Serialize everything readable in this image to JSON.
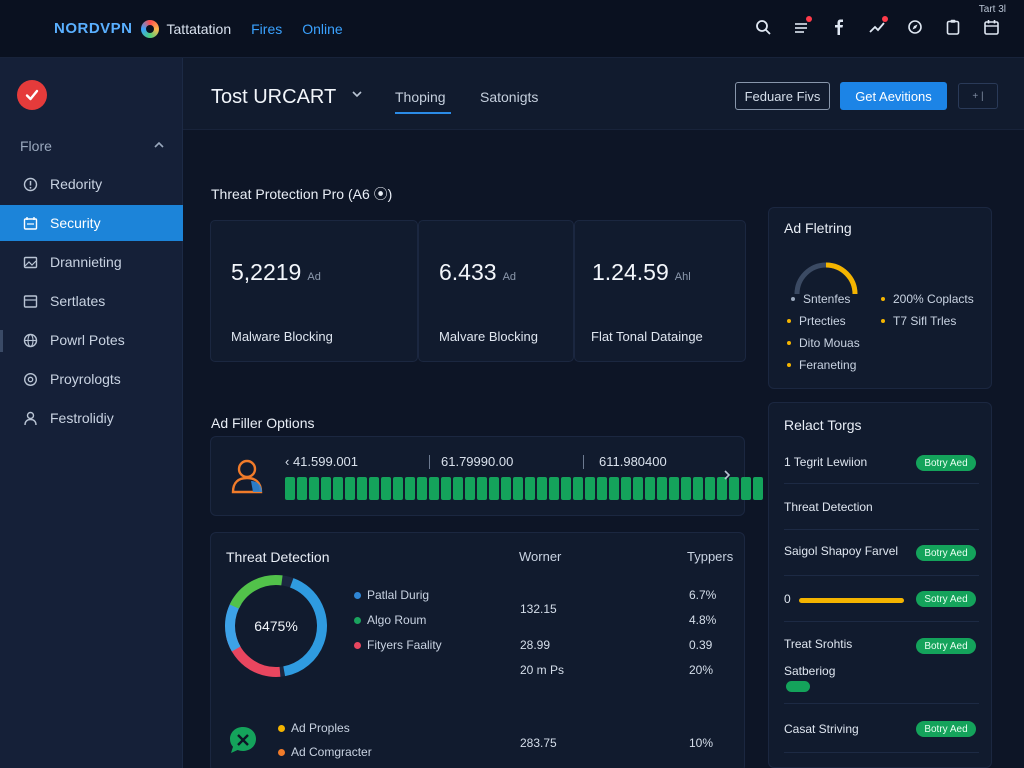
{
  "topbar": {
    "brand": "NORDVPN",
    "nav": [
      "Tattatation",
      "Fires",
      "Online"
    ],
    "corner_label": "Tart 3l",
    "icons": [
      "search-icon",
      "menu-icon",
      "facebook-icon",
      "activity-icon",
      "compass-icon",
      "clipboard-icon",
      "calendar-icon"
    ]
  },
  "sidebar": {
    "section": "Flore",
    "active_index": 1,
    "items": [
      {
        "label": "Redority",
        "icon": "alert-icon"
      },
      {
        "label": "Security",
        "icon": "security-icon"
      },
      {
        "label": "Drannieting",
        "icon": "image-icon"
      },
      {
        "label": "Sertlates",
        "icon": "layout-icon"
      },
      {
        "label": "Powrl Potes",
        "icon": "globe-icon"
      },
      {
        "label": "Proyrologts",
        "icon": "settings-icon"
      },
      {
        "label": "Festrolidiy",
        "icon": "user-icon"
      }
    ]
  },
  "header": {
    "title": "Tost URCART",
    "tabs": [
      "Thoping",
      "Satonigts"
    ],
    "outline_button": "Feduare Fivs",
    "primary_button": "Get Aevitions",
    "small_button": "+ |"
  },
  "threat_protection": {
    "title": "Threat Protection Pro (A6 ⦿)",
    "cards": [
      {
        "value": "5,2219",
        "unit": "Ad",
        "label": "Malware Blocking"
      },
      {
        "value": "6.433",
        "unit": "Ad",
        "label": "Malvare Blocking"
      },
      {
        "value": "1.24.59",
        "unit": "Ahl",
        "label": "Flat Tonal Datainge"
      }
    ]
  },
  "ad_filter": {
    "title": "Ad Filler Options",
    "numbers": [
      "‹ 41.599.001",
      "61.79990.00",
      "611.980400"
    ],
    "segments": 40
  },
  "threat_detection": {
    "title": "Threat Detection",
    "col_a": "Worner",
    "col_b": "Typpers",
    "donut_label": "6475%",
    "legend": [
      {
        "label": "Patlal Durig",
        "color": "#2f86d6"
      },
      {
        "label": "Algo Roum",
        "color": "#1aa35e"
      },
      {
        "label": "Fityers Faality",
        "color": "#e8465f"
      }
    ],
    "rows_a": [
      "132.15",
      "28.99",
      "20 m Ps"
    ],
    "rows_b": [
      "6.7%",
      "4.8%",
      "0.39",
      "20%"
    ],
    "lower_legend": [
      "Ad Proples",
      "Ad Comgracter"
    ],
    "lower_a": "283.75",
    "lower_b": "10%"
  },
  "ad_filtering": {
    "title": "Ad Fletring",
    "legend_left": [
      "Sntenfes",
      "Prtecties",
      "Dito Mouas",
      "Feraneting"
    ],
    "legend_right": [
      "200% Coplacts",
      "T7 Sifl Trles"
    ]
  },
  "relact_tongs": {
    "title": "Relact Torgs",
    "items": [
      {
        "label": "1 Tegrit Lewiion",
        "badge": "Botry Aed"
      },
      {
        "label": "Threat Detection",
        "badge": ""
      },
      {
        "label": "Saigol Shapoy Farvel",
        "badge": "Botry Aed"
      },
      {
        "label": "0",
        "badge": "Sotry Aed"
      },
      {
        "label": "Treat Srohtis",
        "badge": "Botry Aed"
      },
      {
        "label": "Satberiog",
        "badge": ""
      },
      {
        "label": "Casat Striving",
        "badge": "Botry Aed"
      }
    ]
  },
  "colors": {
    "accent": "#1c84e6",
    "success": "#14a35b",
    "warning": "#f4b400",
    "danger": "#e53b3b"
  }
}
